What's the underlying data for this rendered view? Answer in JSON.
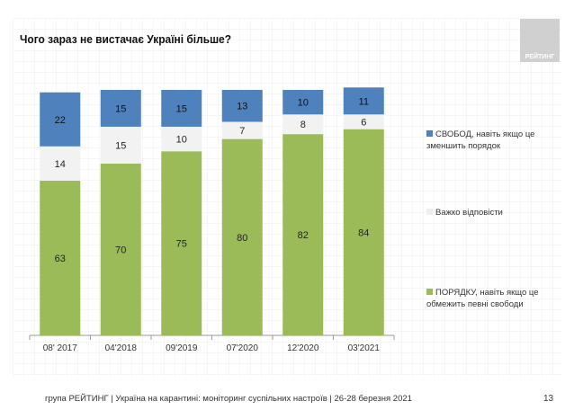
{
  "title": "Чого зараз не вистачає Україні більше?",
  "logo_text": "РЕЙТИНГ",
  "footer": "група РЕЙТИНГ | Україна на карантині: моніторинг суспільних настроїв | 26-28 березня 2021",
  "page_number": "13",
  "chart_data": {
    "type": "bar",
    "stacked": true,
    "title": "Чого зараз не вистачає Україні більше?",
    "categories": [
      "08' 2017",
      "04'2018",
      "09'2019",
      "07'2020",
      "12'2020",
      "03'2021"
    ],
    "series": [
      {
        "name": "ПОРЯДКУ, навіть якщо це обмежить певні свободи",
        "color": "#9bbb59",
        "values": [
          63,
          70,
          75,
          80,
          82,
          84
        ]
      },
      {
        "name": "Важко відповісти",
        "color": "#f2f2f2",
        "values": [
          14,
          15,
          10,
          7,
          8,
          6
        ]
      },
      {
        "name": "СВОБОД, навіть якщо це зменшить порядок",
        "color": "#4f81bd",
        "values": [
          22,
          15,
          15,
          13,
          10,
          11
        ]
      }
    ],
    "ylim": [
      0,
      100
    ],
    "legend_placement": "right",
    "grid": false
  }
}
